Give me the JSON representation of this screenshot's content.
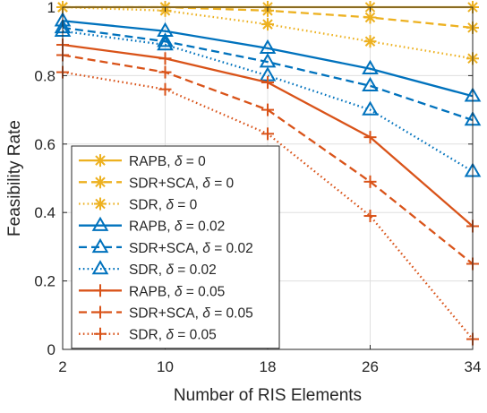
{
  "chart_data": {
    "type": "line",
    "xlabel": "Number of RIS Elements",
    "ylabel": "Feasibility Rate",
    "x": [
      2,
      10,
      18,
      26,
      34
    ],
    "xticks": [
      "2",
      "10",
      "18",
      "26",
      "34"
    ],
    "yticks": [
      "0",
      "0.2",
      "0.4",
      "0.6",
      "0.8",
      "1"
    ],
    "xlim": [
      2,
      34
    ],
    "ylim": [
      0,
      1
    ],
    "grid": true,
    "legend_position": "bottom-left",
    "series": [
      {
        "name": "RAPB, δ = 0",
        "label_prefix": "RAPB, ",
        "label_suffix": " = 0",
        "values": [
          1.0,
          1.0,
          1.0,
          1.0,
          1.0
        ],
        "color": "#EDB120",
        "dash": "solid",
        "marker": "star"
      },
      {
        "name": "SDR+SCA, δ = 0",
        "label_prefix": "SDR+SCA, ",
        "label_suffix": " = 0",
        "values": [
          1.0,
          1.0,
          0.99,
          0.97,
          0.94
        ],
        "color": "#EDB120",
        "dash": "dashed",
        "marker": "star"
      },
      {
        "name": "SDR, δ = 0",
        "label_prefix": "SDR, ",
        "label_suffix": " = 0",
        "values": [
          1.0,
          0.99,
          0.95,
          0.9,
          0.85
        ],
        "color": "#EDB120",
        "dash": "dotted",
        "marker": "star"
      },
      {
        "name": "RAPB, δ = 0.02",
        "label_prefix": "RAPB, ",
        "label_suffix": " = 0.02",
        "values": [
          0.96,
          0.93,
          0.88,
          0.82,
          0.74
        ],
        "color": "#0072BD",
        "dash": "solid",
        "marker": "triangle"
      },
      {
        "name": "SDR+SCA, δ = 0.02",
        "label_prefix": "SDR+SCA, ",
        "label_suffix": " = 0.02",
        "values": [
          0.94,
          0.9,
          0.84,
          0.77,
          0.67
        ],
        "color": "#0072BD",
        "dash": "dashed",
        "marker": "triangle"
      },
      {
        "name": "SDR, δ = 0.02",
        "label_prefix": "SDR, ",
        "label_suffix": " = 0.02",
        "values": [
          0.93,
          0.89,
          0.8,
          0.7,
          0.52
        ],
        "color": "#0072BD",
        "dash": "dotted",
        "marker": "triangle"
      },
      {
        "name": "RAPB, δ = 0.05",
        "label_prefix": "RAPB, ",
        "label_suffix": " = 0.05",
        "values": [
          0.89,
          0.85,
          0.78,
          0.62,
          0.36
        ],
        "color": "#D95319",
        "dash": "solid",
        "marker": "plus"
      },
      {
        "name": "SDR+SCA, δ = 0.05",
        "label_prefix": "SDR+SCA, ",
        "label_suffix": " = 0.05",
        "values": [
          0.86,
          0.81,
          0.7,
          0.49,
          0.25
        ],
        "color": "#D95319",
        "dash": "dashed",
        "marker": "plus"
      },
      {
        "name": "SDR, δ = 0.05",
        "label_prefix": "SDR, ",
        "label_suffix": " = 0.05",
        "values": [
          0.81,
          0.76,
          0.63,
          0.39,
          0.03
        ],
        "color": "#D95319",
        "dash": "dotted",
        "marker": "plus"
      }
    ]
  }
}
